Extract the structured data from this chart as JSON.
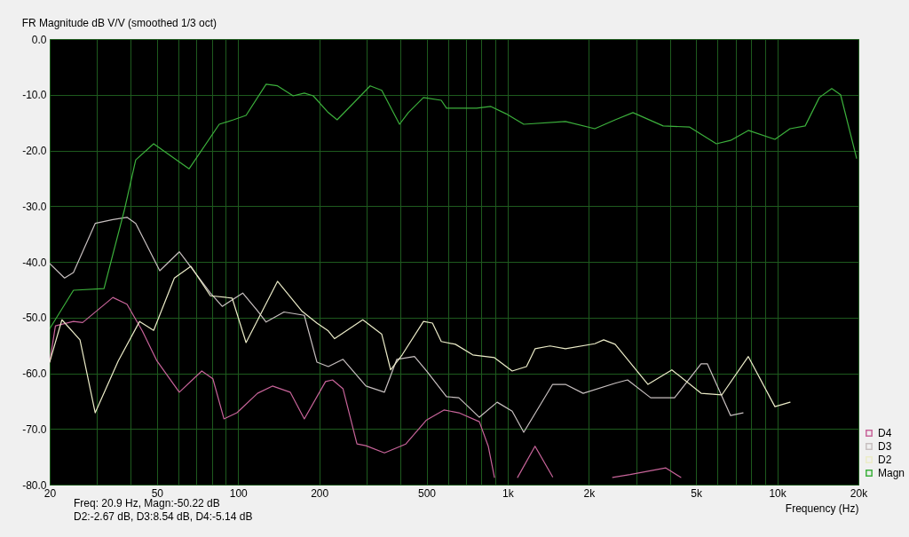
{
  "chart_data": {
    "type": "line",
    "title": "FR Magnitude dB V/V (smoothed 1/3 oct)",
    "xlabel": "Frequency (Hz)",
    "log": "x",
    "grid": true,
    "legend": "bottom right",
    "line_style": "solid",
    "xlim": [
      20,
      20000
    ],
    "ylim": [
      -80,
      0
    ],
    "xticks": [
      20,
      {
        "value": 30,
        "label": null
      },
      {
        "value": 40,
        "label": null
      },
      50,
      {
        "value": 60,
        "label": null
      },
      {
        "value": 70,
        "label": null
      },
      {
        "value": 80,
        "label": null
      },
      {
        "value": 90,
        "label": null
      },
      100,
      200,
      {
        "value": 300,
        "label": null
      },
      {
        "value": 400,
        "label": null
      },
      500,
      {
        "value": 600,
        "label": null
      },
      {
        "value": 700,
        "label": null
      },
      {
        "value": 800,
        "label": null
      },
      {
        "value": 900,
        "label": null
      },
      {
        "value": 1000,
        "label": "1k"
      },
      {
        "value": 2000,
        "label": "2k"
      },
      {
        "value": 3000,
        "label": null
      },
      {
        "value": 4000,
        "label": null
      },
      {
        "value": 5000,
        "label": "5k"
      },
      {
        "value": 6000,
        "label": null
      },
      {
        "value": 7000,
        "label": null
      },
      {
        "value": 8000,
        "label": null
      },
      {
        "value": 9000,
        "label": null
      },
      {
        "value": 10000,
        "label": "10k"
      },
      {
        "value": 20000,
        "label": "20k"
      }
    ],
    "yticks": [
      {
        "value": 0,
        "label": "0.0"
      },
      {
        "value": -10,
        "label": "-10.0"
      },
      {
        "value": -20,
        "label": "-20.0"
      },
      {
        "value": -30,
        "label": "-30.0"
      },
      {
        "value": -40,
        "label": "-40.0"
      },
      {
        "value": -50,
        "label": "-50.0"
      },
      {
        "value": -60,
        "label": "-60.0"
      },
      {
        "value": -70,
        "label": "-70.0"
      },
      {
        "value": -80,
        "label": "-80.0"
      }
    ],
    "series": [
      {
        "name": "D4",
        "color": "#c8649a",
        "x": [
          20,
          21,
          24.5,
          26.5,
          34.3,
          38.7,
          44.1,
          50,
          60.5,
          73.3,
          80.6,
          88.6,
          99,
          118,
          134,
          156,
          176,
          211,
          224,
          245,
          276,
          298,
          349,
          419,
          500,
          580,
          659,
          785,
          847,
          893,
          914,
          1040,
          1088,
          1263,
          1468,
          1800,
          2451,
          2845,
          3860,
          4386
        ],
        "values": [
          -58,
          -51.5,
          -50.7,
          -50.9,
          -46.4,
          -47.6,
          -52.4,
          -57.8,
          -63.4,
          -59.6,
          -61,
          -68.2,
          -67.1,
          -63.6,
          -62.3,
          -63.4,
          -68.2,
          -61.5,
          -61.2,
          -62.8,
          -72.7,
          -73,
          -74.3,
          -72.7,
          -68.4,
          -66.6,
          -67.1,
          -68.7,
          -73.1,
          -78.7,
          null,
          null,
          -78.7,
          -73.1,
          -78.6,
          null,
          -78.7,
          -78.2,
          -77,
          -78.7
        ]
      },
      {
        "name": "D3",
        "color": "#c8c0c0",
        "x": [
          20,
          22.7,
          24.5,
          29.5,
          34.3,
          38.7,
          41.7,
          51.2,
          60.5,
          78.9,
          87.3,
          104,
          118,
          127,
          148,
          176,
          196,
          216,
          245,
          298,
          349,
          388,
          451,
          500,
          593,
          659,
          785,
          914,
          1039,
          1147,
          1468,
          1638,
          1905,
          2504,
          2784,
          3392,
          4160,
          5217,
          5502,
          6712,
          7469
        ],
        "values": [
          -40.3,
          -42.9,
          -41.9,
          -33.1,
          -32.4,
          -32,
          -33.1,
          -41.6,
          -38.2,
          -45.6,
          -48,
          -45.6,
          -48.8,
          -50.8,
          -49,
          -49.6,
          -58,
          -58.8,
          -57.5,
          -62.3,
          -63.4,
          -57.5,
          -57,
          -59.6,
          -64.2,
          -64.4,
          -67.9,
          -65.2,
          -66.8,
          -70.6,
          -62,
          -62,
          -63.6,
          -61.8,
          -61.2,
          -64.4,
          -64.4,
          -58.3,
          -58.3,
          -67.6,
          -67.1
        ]
      },
      {
        "name": "D2",
        "color": "#ececc8",
        "x": [
          20,
          22.2,
          25.9,
          29.5,
          35.9,
          43.1,
          48.6,
          58,
          66.8,
          78.9,
          95,
          107,
          140,
          172,
          196,
          216,
          228,
          290,
          341,
          368,
          406,
          487,
          526,
          567,
          640,
          742,
          893,
          1039,
          1174,
          1263,
          1436,
          1638,
          2104,
          2270,
          2504,
          3315,
          4065,
          5217,
          6224,
          7810,
          9802,
          11156
        ],
        "values": [
          -58,
          -50.4,
          -54,
          -67.1,
          -57.8,
          -50.7,
          -52.3,
          -42.9,
          -40.8,
          -46.1,
          -46.5,
          -54.5,
          -43.5,
          -48.8,
          -51,
          -52.4,
          -53.8,
          -50.4,
          -53,
          -59.4,
          -56.7,
          -50.7,
          -51,
          -54.3,
          -54.8,
          -56.7,
          -57.2,
          -59.6,
          -58.8,
          -55.6,
          -55.1,
          -55.6,
          -54.7,
          -54,
          -54.8,
          -62,
          -59.4,
          -63.6,
          -63.9,
          -57,
          -66,
          -65.2
        ]
      },
      {
        "name": "Magn",
        "color": "#3cb03c",
        "x": [
          20,
          24.5,
          31.8,
          37.8,
          41.7,
          48.6,
          65.8,
          85.1,
          96,
          107,
          127,
          140,
          160,
          176,
          190,
          216,
          233,
          309,
          341,
          397,
          428,
          487,
          567,
          593,
          767,
          866,
          985,
          1147,
          1638,
          2104,
          2504,
          2915,
          3773,
          4734,
          5946,
          6712,
          7810,
          9802,
          11156,
          12692,
          14324,
          15930,
          17180,
          19698
        ],
        "values": [
          -52,
          -45.1,
          -44.8,
          -30.8,
          -21.7,
          -18.8,
          -23.3,
          -15.3,
          -14.5,
          -13.7,
          -8.1,
          -8.4,
          -10.2,
          -9.7,
          -10.2,
          -13.2,
          -14.5,
          -8.4,
          -9.2,
          -15.3,
          -13.2,
          -10.5,
          -11,
          -12.4,
          -12.4,
          -12.1,
          -13.4,
          -15.3,
          -14.8,
          -16.1,
          -14.5,
          -13.2,
          -15.6,
          -15.8,
          -18.8,
          -18.2,
          -16.4,
          -18,
          -16.1,
          -15.6,
          -10.5,
          -8.9,
          -10,
          -21.4
        ]
      }
    ],
    "annotations": [
      "Freq: 20.9 Hz, Magn:-50.22 dB",
      "D2:-2.67 dB, D3:8.54 dB, D4:-5.14 dB"
    ]
  }
}
